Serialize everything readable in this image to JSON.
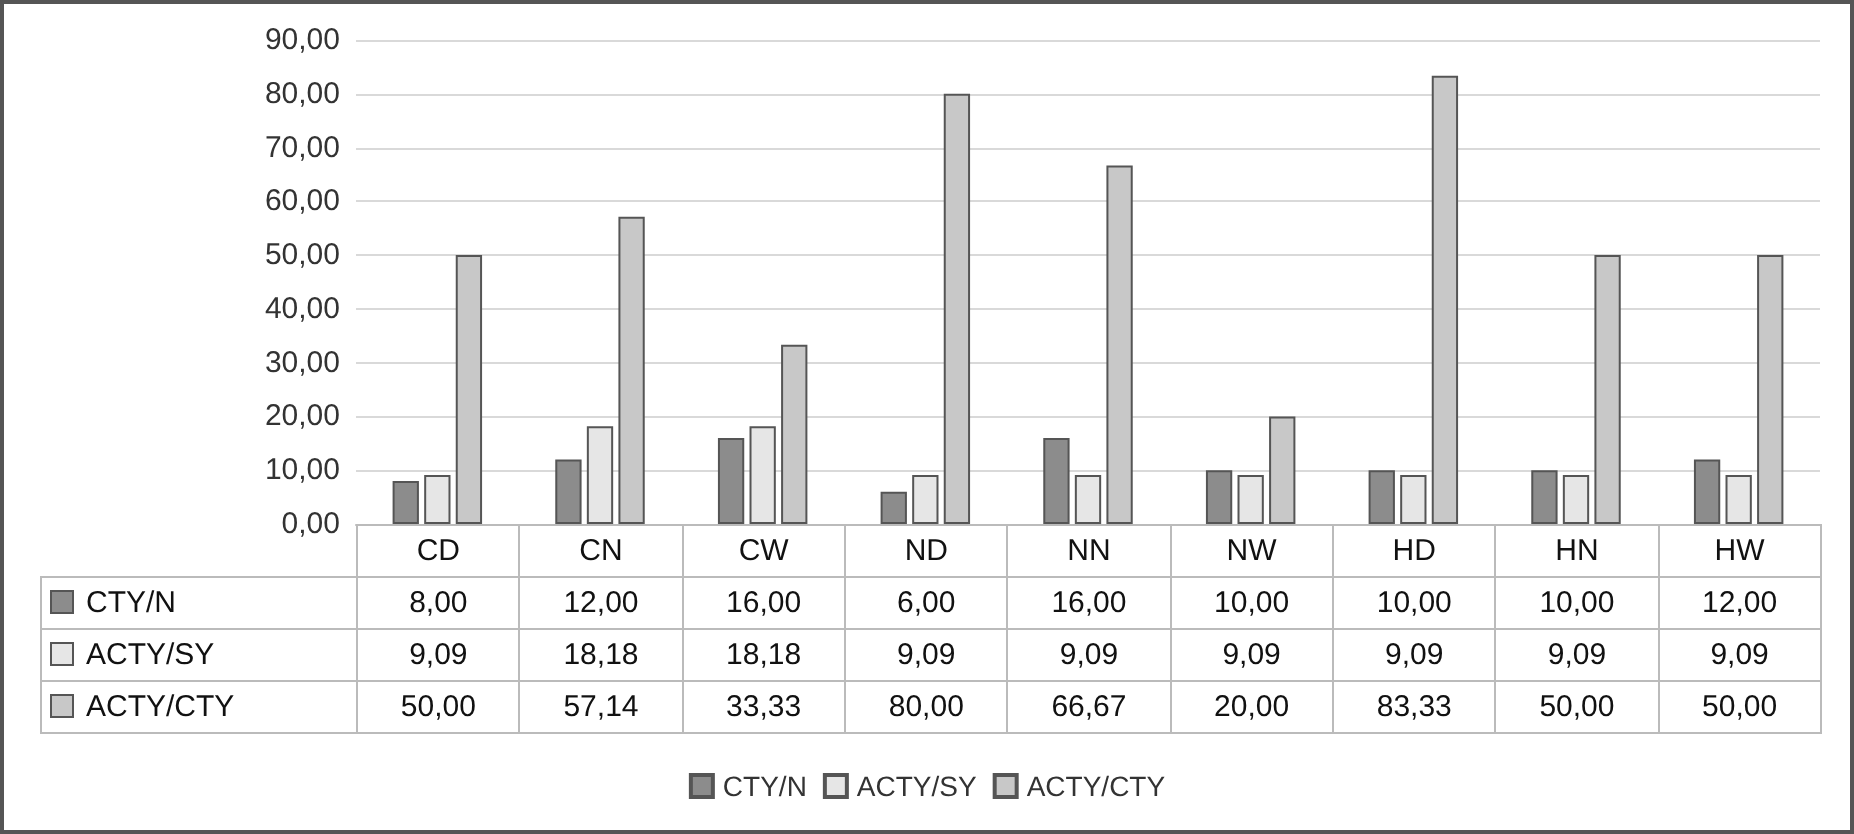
{
  "chart_data": {
    "type": "bar",
    "categories": [
      "CD",
      "CN",
      "CW",
      "ND",
      "NN",
      "NW",
      "HD",
      "HN",
      "HW"
    ],
    "series": [
      {
        "name": "CTY/N",
        "color": "#8c8c8c",
        "values": [
          8.0,
          12.0,
          16.0,
          6.0,
          16.0,
          10.0,
          10.0,
          10.0,
          12.0
        ],
        "value_labels": [
          "8,00",
          "12,00",
          "16,00",
          "6,00",
          "16,00",
          "10,00",
          "10,00",
          "10,00",
          "12,00"
        ]
      },
      {
        "name": "ACTY/SY",
        "color": "#e6e6e6",
        "values": [
          9.09,
          18.18,
          18.18,
          9.09,
          9.09,
          9.09,
          9.09,
          9.09,
          9.09
        ],
        "value_labels": [
          "9,09",
          "18,18",
          "18,18",
          "9,09",
          "9,09",
          "9,09",
          "9,09",
          "9,09",
          "9,09"
        ]
      },
      {
        "name": "ACTY/CTY",
        "color": "#c8c8c8",
        "values": [
          50.0,
          57.14,
          33.33,
          80.0,
          66.67,
          20.0,
          83.33,
          50.0,
          50.0
        ],
        "value_labels": [
          "50,00",
          "57,14",
          "33,33",
          "80,00",
          "66,67",
          "20,00",
          "83,33",
          "50,00",
          "50,00"
        ]
      }
    ],
    "ylim": [
      0,
      90
    ],
    "yticks": [
      {
        "value": 0,
        "label": "0,00"
      },
      {
        "value": 10,
        "label": "10,00"
      },
      {
        "value": 20,
        "label": "20,00"
      },
      {
        "value": 30,
        "label": "30,00"
      },
      {
        "value": 40,
        "label": "40,00"
      },
      {
        "value": 50,
        "label": "50,00"
      },
      {
        "value": 60,
        "label": "60,00"
      },
      {
        "value": 70,
        "label": "70,00"
      },
      {
        "value": 80,
        "label": "80,00"
      },
      {
        "value": 90,
        "label": "90,00"
      }
    ],
    "grid": "y",
    "legend": "bottom"
  }
}
